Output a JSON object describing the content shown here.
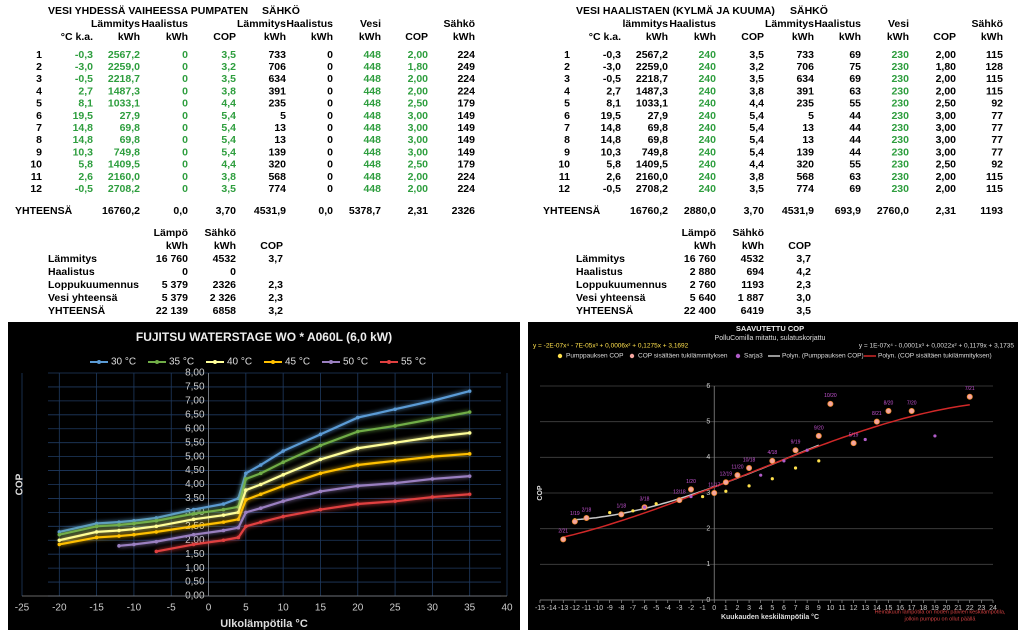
{
  "tables": [
    {
      "title": "VESI YHDESSÄ VAIHEESSA PUMPATEN",
      "group": "SÄHKÖ",
      "column_colors": [
        "#000000",
        "#2e9e3e",
        "#2e9e3e",
        "#2e9e3e",
        "#2e9e3e",
        "#000000",
        "#000000",
        "#2e9e3e",
        "#2e9e3e",
        "#000000"
      ],
      "header": [
        [
          null,
          null,
          "Lämmitys",
          "Haalistus",
          null,
          "Lämmitys",
          "Haalistus",
          "Vesi",
          null,
          "Sähkö"
        ],
        [
          null,
          "°C k.a.",
          "kWh",
          "kWh",
          "COP",
          "kWh",
          "kWh",
          "kWh",
          "COP",
          "kWh"
        ]
      ],
      "rows": [
        [
          "1",
          "-0,3",
          "2567,2",
          "0",
          "3,5",
          "733",
          "0",
          "448",
          "2,00",
          "224"
        ],
        [
          "2",
          "-3,0",
          "2259,0",
          "0",
          "3,2",
          "706",
          "0",
          "448",
          "1,80",
          "249"
        ],
        [
          "3",
          "-0,5",
          "2218,7",
          "0",
          "3,5",
          "634",
          "0",
          "448",
          "2,00",
          "224"
        ],
        [
          "4",
          "2,7",
          "1487,3",
          "0",
          "3,8",
          "391",
          "0",
          "448",
          "2,00",
          "224"
        ],
        [
          "5",
          "8,1",
          "1033,1",
          "0",
          "4,4",
          "235",
          "0",
          "448",
          "2,50",
          "179"
        ],
        [
          "6",
          "19,5",
          "27,9",
          "0",
          "5,4",
          "5",
          "0",
          "448",
          "3,00",
          "149"
        ],
        [
          "7",
          "14,8",
          "69,8",
          "0",
          "5,4",
          "13",
          "0",
          "448",
          "3,00",
          "149"
        ],
        [
          "8",
          "14,8",
          "69,8",
          "0",
          "5,4",
          "13",
          "0",
          "448",
          "3,00",
          "149"
        ],
        [
          "9",
          "10,3",
          "749,8",
          "0",
          "5,4",
          "139",
          "0",
          "448",
          "3,00",
          "149"
        ],
        [
          "10",
          "5,8",
          "1409,5",
          "0",
          "4,4",
          "320",
          "0",
          "448",
          "2,50",
          "179"
        ],
        [
          "11",
          "2,6",
          "2160,0",
          "0",
          "3,8",
          "568",
          "0",
          "448",
          "2,00",
          "224"
        ],
        [
          "12",
          "-0,5",
          "2708,2",
          "0",
          "3,5",
          "774",
          "0",
          "448",
          "2,00",
          "224"
        ]
      ],
      "total": [
        "YHTEENSÄ",
        null,
        "16760,2",
        "0,0",
        "3,70",
        "4531,9",
        "0,0",
        "5378,7",
        "2,31",
        "2326"
      ]
    },
    {
      "title": "VESI HAALISTAEN (KYLMÄ JA KUUMA)",
      "group": "SÄHKÖ",
      "column_colors": [
        "#000000",
        "#000000",
        "#000000",
        "#2e9e3e",
        "#000000",
        "#000000",
        "#000000",
        "#2e9e3e",
        "#000000",
        "#000000"
      ],
      "header": [
        [
          null,
          null,
          "lämmitys",
          "Haalistus",
          null,
          "Lämmitys",
          "Haalistus",
          "Vesi",
          null,
          "Sähkö"
        ],
        [
          null,
          "°C k.a.",
          "kWh",
          "kWh",
          "COP",
          "kWh",
          "kWh",
          "kWh",
          "COP",
          "kWh"
        ]
      ],
      "rows": [
        [
          "1",
          "-0,3",
          "2567,2",
          "240",
          "3,5",
          "733",
          "69",
          "230",
          "2,00",
          "115"
        ],
        [
          "2",
          "-3,0",
          "2259,0",
          "240",
          "3,2",
          "706",
          "75",
          "230",
          "1,80",
          "128"
        ],
        [
          "3",
          "-0,5",
          "2218,7",
          "240",
          "3,5",
          "634",
          "69",
          "230",
          "2,00",
          "115"
        ],
        [
          "4",
          "2,7",
          "1487,3",
          "240",
          "3,8",
          "391",
          "63",
          "230",
          "2,00",
          "115"
        ],
        [
          "5",
          "8,1",
          "1033,1",
          "240",
          "4,4",
          "235",
          "55",
          "230",
          "2,50",
          "92"
        ],
        [
          "6",
          "19,5",
          "27,9",
          "240",
          "5,4",
          "5",
          "44",
          "230",
          "3,00",
          "77"
        ],
        [
          "7",
          "14,8",
          "69,8",
          "240",
          "5,4",
          "13",
          "44",
          "230",
          "3,00",
          "77"
        ],
        [
          "8",
          "14,8",
          "69,8",
          "240",
          "5,4",
          "13",
          "44",
          "230",
          "3,00",
          "77"
        ],
        [
          "9",
          "10,3",
          "749,8",
          "240",
          "5,4",
          "139",
          "44",
          "230",
          "3,00",
          "77"
        ],
        [
          "10",
          "5,8",
          "1409,5",
          "240",
          "4,4",
          "320",
          "55",
          "230",
          "2,50",
          "92"
        ],
        [
          "11",
          "2,6",
          "2160,0",
          "240",
          "3,8",
          "568",
          "63",
          "230",
          "2,00",
          "115"
        ],
        [
          "12",
          "-0,5",
          "2708,2",
          "240",
          "3,5",
          "774",
          "69",
          "230",
          "2,00",
          "115"
        ]
      ],
      "total": [
        "YHTEENSÄ",
        null,
        "16760,2",
        "2880,0",
        "3,70",
        "4531,9",
        "693,9",
        "2760,0",
        "2,31",
        "1193"
      ]
    }
  ],
  "summaries": [
    {
      "header": [
        [
          "Lämpö",
          "Sähkö",
          null
        ],
        [
          "kWh",
          "kWh",
          "COP"
        ]
      ],
      "rows": [
        [
          "Lämmitys",
          "16 760",
          "4532",
          "3,7"
        ],
        [
          "Haalistus",
          "0",
          "0",
          null
        ],
        [
          "Loppukuumennus",
          "5 379",
          "2326",
          "2,3"
        ],
        [
          "Vesi yhteensä",
          "5 379",
          "2 326",
          "2,3"
        ],
        [
          "YHTEENSÄ",
          "22 139",
          "6858",
          "3,2"
        ]
      ]
    },
    {
      "header": [
        [
          "Lämpö",
          "Sähkö",
          null
        ],
        [
          "kWh",
          "kWh",
          "COP"
        ]
      ],
      "rows": [
        [
          "Lämmitys",
          "16 760",
          "4532",
          "3,7"
        ],
        [
          "Haalistus",
          "2 880",
          "694",
          "4,2"
        ],
        [
          "Loppukuumennus",
          "2 760",
          "1193",
          "2,3"
        ],
        [
          "Vesi yhteensä",
          "5 640",
          "1 887",
          "3,0"
        ],
        [
          "YHTEENSÄ",
          "22 400",
          "6419",
          "3,5"
        ]
      ]
    }
  ],
  "chart_data": [
    {
      "type": "line",
      "title": "FUJITSU WATERSTAGE WO * A060L (6,0 kW)",
      "x_label": "Ulkolämpötila °C",
      "y_label": "COP",
      "x": [
        -20,
        -15,
        -12,
        -10,
        -7,
        -2,
        2,
        4,
        5,
        7,
        10,
        15,
        20,
        25,
        30,
        35
      ],
      "series": [
        {
          "name": "30 °C",
          "color": "#5b9bd5",
          "values": [
            2.3,
            2.6,
            2.65,
            2.7,
            2.8,
            3.1,
            3.3,
            3.5,
            4.4,
            4.7,
            5.2,
            5.8,
            6.4,
            6.7,
            7.0,
            7.35
          ]
        },
        {
          "name": "35 °C",
          "color": "#70ad47",
          "values": [
            2.2,
            2.5,
            2.55,
            2.6,
            2.7,
            2.95,
            3.1,
            3.2,
            4.2,
            4.4,
            4.8,
            5.4,
            5.9,
            6.1,
            6.35,
            6.6
          ]
        },
        {
          "name": "40 °C",
          "color": "#ffff99",
          "values": [
            2.0,
            2.3,
            2.35,
            2.4,
            2.5,
            2.75,
            2.9,
            3.0,
            3.8,
            4.0,
            4.35,
            4.9,
            5.3,
            5.5,
            5.7,
            5.85
          ]
        },
        {
          "name": "45 °C",
          "color": "#ffc000",
          "values": [
            1.85,
            2.1,
            2.15,
            2.2,
            2.3,
            2.5,
            2.65,
            2.75,
            3.45,
            3.65,
            3.95,
            4.4,
            4.7,
            4.85,
            5.0,
            5.1
          ]
        },
        {
          "name": "50 °C",
          "color": "#9a7fc0",
          "values": [
            null,
            null,
            1.8,
            1.85,
            1.95,
            2.2,
            2.35,
            2.45,
            3.0,
            3.15,
            3.4,
            3.75,
            3.95,
            4.05,
            4.2,
            4.3
          ]
        },
        {
          "name": "55 °C",
          "color": "#e04040",
          "values": [
            null,
            null,
            null,
            null,
            1.6,
            1.85,
            2.0,
            2.1,
            2.5,
            2.65,
            2.85,
            3.1,
            3.3,
            3.4,
            3.55,
            3.65
          ]
        }
      ],
      "xlim": [
        -25,
        40
      ],
      "xticks": [
        -25,
        -20,
        -15,
        -10,
        -5,
        0,
        5,
        10,
        15,
        20,
        25,
        30,
        35,
        40
      ],
      "ylim": [
        0,
        8
      ],
      "yticks": [
        {
          "value": 0,
          "label": "0,00"
        },
        {
          "value": 0.5,
          "label": "0,50"
        },
        {
          "value": 1,
          "label": "1,00"
        },
        {
          "value": 1.5,
          "label": "1,50"
        },
        {
          "value": 2,
          "label": "2,00"
        },
        {
          "value": 2.5,
          "label": "2,50"
        },
        {
          "value": 3,
          "label": "3,00"
        },
        {
          "value": 3.5,
          "label": "3,50"
        },
        {
          "value": 4,
          "label": "4,00"
        },
        {
          "value": 4.5,
          "label": "4,50"
        },
        {
          "value": 5,
          "label": "5,00"
        },
        {
          "value": 5.5,
          "label": "5,50"
        },
        {
          "value": 6,
          "label": "6,00"
        },
        {
          "value": 6.5,
          "label": "6,50"
        },
        {
          "value": 7,
          "label": "7,00"
        },
        {
          "value": 7.5,
          "label": "7,50"
        },
        {
          "value": 8,
          "label": "8,00"
        }
      ],
      "grid": true,
      "legend": "top"
    },
    {
      "type": "scatter",
      "title": "SAAVUTETTU COP",
      "subtitle": "PolluComilla mitattu, sulatuskorjattu",
      "equations": [
        "y = -2E-07x⁴ - 7E-05x³ + 0,0006x² + 0,1275x + 3,1692",
        "y = 1E-07x⁴ - 0,0001x³ + 0,0022x² + 0,1179x + 3,1735"
      ],
      "x_label": "Kuukauden keskilämpötila °C",
      "y_label": "COP",
      "annotation": [
        "Heinäkuun lämpötila on noden päivien keskilämpötila,",
        "jolloin pumppu on ollut päällä"
      ],
      "series": [
        {
          "name": "Pumppauksen COP",
          "color": "#ffe14d",
          "x": [
            -12,
            -11,
            -9,
            -7,
            -5,
            -3,
            -1,
            0,
            1,
            3,
            5,
            7,
            9
          ],
          "values": [
            2.25,
            2.3,
            2.45,
            2.5,
            2.7,
            2.8,
            2.9,
            3.0,
            3.05,
            3.2,
            3.4,
            3.7,
            3.9
          ]
        },
        {
          "name": "COP sisältäen tukilämmityksen",
          "color": "#f4a6a0",
          "label_color": "#c855d6",
          "x": [
            -13,
            -12,
            -11,
            -8,
            -6,
            -3,
            -2,
            0,
            1,
            2,
            3,
            5,
            7,
            9,
            10,
            12,
            14,
            15,
            17,
            22
          ],
          "values": [
            1.7,
            2.2,
            2.3,
            2.4,
            2.6,
            2.8,
            3.1,
            3.0,
            3.3,
            3.5,
            3.7,
            3.9,
            4.2,
            4.6,
            5.5,
            4.4,
            5.0,
            5.3,
            5.3,
            5.7
          ],
          "labels": [
            "2/21",
            "1/19",
            "2/18",
            "1/18",
            "3/18",
            "12/18",
            "1/20",
            "11/17",
            "12/19",
            "11/20",
            "10/18",
            "4/18",
            "9/19",
            "9/20",
            "10/20",
            "5/19",
            "8/21",
            "8/20",
            "7/20",
            "7/21"
          ]
        },
        {
          "name": "Sarja3",
          "color": "#b05cc8",
          "x": [
            -6,
            -2,
            4,
            6,
            8,
            13,
            19
          ],
          "values": [
            2.6,
            2.9,
            3.5,
            3.9,
            4.2,
            4.5,
            4.6
          ]
        }
      ],
      "trendlines": [
        {
          "name": "Polyn. (Pumppauksen COP)",
          "color": "#c8c8c8",
          "series": 0,
          "coefficients": [
            1e-07,
            -0.0001,
            0.0022,
            0.1179,
            3.1735
          ]
        },
        {
          "name": "Polyn. (COP sisältäen tukilämmityksen)",
          "color": "#d02828",
          "series": 1,
          "coefficients": [
            -2e-07,
            -7e-05,
            0.0006,
            0.1275,
            3.1692
          ]
        }
      ],
      "xlim": [
        -15,
        24
      ],
      "xticks": [
        -15,
        -14,
        -13,
        -12,
        -11,
        -10,
        -9,
        -8,
        -7,
        -6,
        -5,
        -4,
        -3,
        -2,
        -1,
        0,
        1,
        2,
        3,
        4,
        5,
        6,
        7,
        8,
        9,
        10,
        11,
        12,
        13,
        14,
        15,
        16,
        17,
        18,
        19,
        20,
        21,
        22,
        23,
        24
      ],
      "ylim": [
        0,
        6
      ],
      "yticks": [
        0,
        1,
        2,
        3,
        4,
        5,
        6
      ],
      "grid": true,
      "legend": "top"
    }
  ]
}
